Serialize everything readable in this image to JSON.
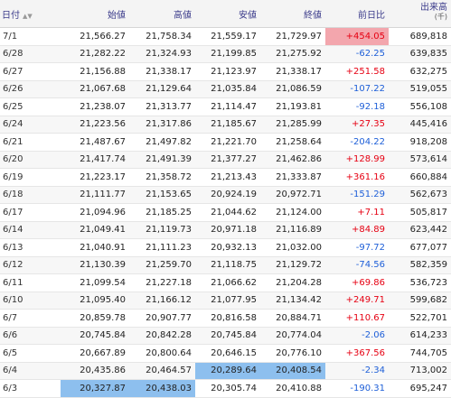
{
  "header": {
    "date": "日付",
    "sort_up": "▲",
    "sort_down": "▼",
    "open": "始値",
    "high": "高値",
    "low": "安値",
    "close": "終値",
    "change": "前日比",
    "volume": "出来高",
    "volume_unit": "(千)"
  },
  "rows": [
    {
      "date": "7/1",
      "open": "21,566.27",
      "high": "21,758.34",
      "low": "21,559.17",
      "close": "21,729.97",
      "change": "+454.05",
      "volume": "689,818"
    },
    {
      "date": "6/28",
      "open": "21,282.22",
      "high": "21,324.93",
      "low": "21,199.85",
      "close": "21,275.92",
      "change": "-62.25",
      "volume": "639,835"
    },
    {
      "date": "6/27",
      "open": "21,156.88",
      "high": "21,338.17",
      "low": "21,123.97",
      "close": "21,338.17",
      "change": "+251.58",
      "volume": "632,275"
    },
    {
      "date": "6/26",
      "open": "21,067.68",
      "high": "21,129.64",
      "low": "21,035.84",
      "close": "21,086.59",
      "change": "-107.22",
      "volume": "519,055"
    },
    {
      "date": "6/25",
      "open": "21,238.07",
      "high": "21,313.77",
      "low": "21,114.47",
      "close": "21,193.81",
      "change": "-92.18",
      "volume": "556,108"
    },
    {
      "date": "6/24",
      "open": "21,223.56",
      "high": "21,317.86",
      "low": "21,185.67",
      "close": "21,285.99",
      "change": "+27.35",
      "volume": "445,416"
    },
    {
      "date": "6/21",
      "open": "21,487.67",
      "high": "21,497.82",
      "low": "21,221.70",
      "close": "21,258.64",
      "change": "-204.22",
      "volume": "918,208"
    },
    {
      "date": "6/20",
      "open": "21,417.74",
      "high": "21,491.39",
      "low": "21,377.27",
      "close": "21,462.86",
      "change": "+128.99",
      "volume": "573,614"
    },
    {
      "date": "6/19",
      "open": "21,223.17",
      "high": "21,358.72",
      "low": "21,213.43",
      "close": "21,333.87",
      "change": "+361.16",
      "volume": "660,884"
    },
    {
      "date": "6/18",
      "open": "21,111.77",
      "high": "21,153.65",
      "low": "20,924.19",
      "close": "20,972.71",
      "change": "-151.29",
      "volume": "562,673"
    },
    {
      "date": "6/17",
      "open": "21,094.96",
      "high": "21,185.25",
      "low": "21,044.62",
      "close": "21,124.00",
      "change": "+7.11",
      "volume": "505,817"
    },
    {
      "date": "6/14",
      "open": "21,049.41",
      "high": "21,119.73",
      "low": "20,971.18",
      "close": "21,116.89",
      "change": "+84.89",
      "volume": "623,442"
    },
    {
      "date": "6/13",
      "open": "21,040.91",
      "high": "21,111.23",
      "low": "20,932.13",
      "close": "21,032.00",
      "change": "-97.72",
      "volume": "677,077"
    },
    {
      "date": "6/12",
      "open": "21,130.39",
      "high": "21,259.70",
      "low": "21,118.75",
      "close": "21,129.72",
      "change": "-74.56",
      "volume": "582,359"
    },
    {
      "date": "6/11",
      "open": "21,099.54",
      "high": "21,227.18",
      "low": "21,066.62",
      "close": "21,204.28",
      "change": "+69.86",
      "volume": "536,723"
    },
    {
      "date": "6/10",
      "open": "21,095.40",
      "high": "21,166.12",
      "low": "21,077.95",
      "close": "21,134.42",
      "change": "+249.71",
      "volume": "599,682"
    },
    {
      "date": "6/7",
      "open": "20,859.78",
      "high": "20,907.77",
      "low": "20,816.58",
      "close": "20,884.71",
      "change": "+110.67",
      "volume": "522,701"
    },
    {
      "date": "6/6",
      "open": "20,745.84",
      "high": "20,842.28",
      "low": "20,745.84",
      "close": "20,774.04",
      "change": "-2.06",
      "volume": "614,233"
    },
    {
      "date": "6/5",
      "open": "20,667.89",
      "high": "20,800.64",
      "low": "20,646.15",
      "close": "20,776.10",
      "change": "+367.56",
      "volume": "744,705"
    },
    {
      "date": "6/4",
      "open": "20,435.86",
      "high": "20,464.57",
      "low": "20,289.64",
      "close": "20,408.54",
      "change": "-2.34",
      "volume": "713,002"
    },
    {
      "date": "6/3",
      "open": "20,327.87",
      "high": "20,438.03",
      "low": "20,305.74",
      "close": "20,410.88",
      "change": "-190.31",
      "volume": "695,247"
    }
  ],
  "highlights": {
    "max_color": "#f3a6ad",
    "min_color": "#8dbfee",
    "up_color": "#e60012",
    "down_color": "#1e5fd8"
  }
}
